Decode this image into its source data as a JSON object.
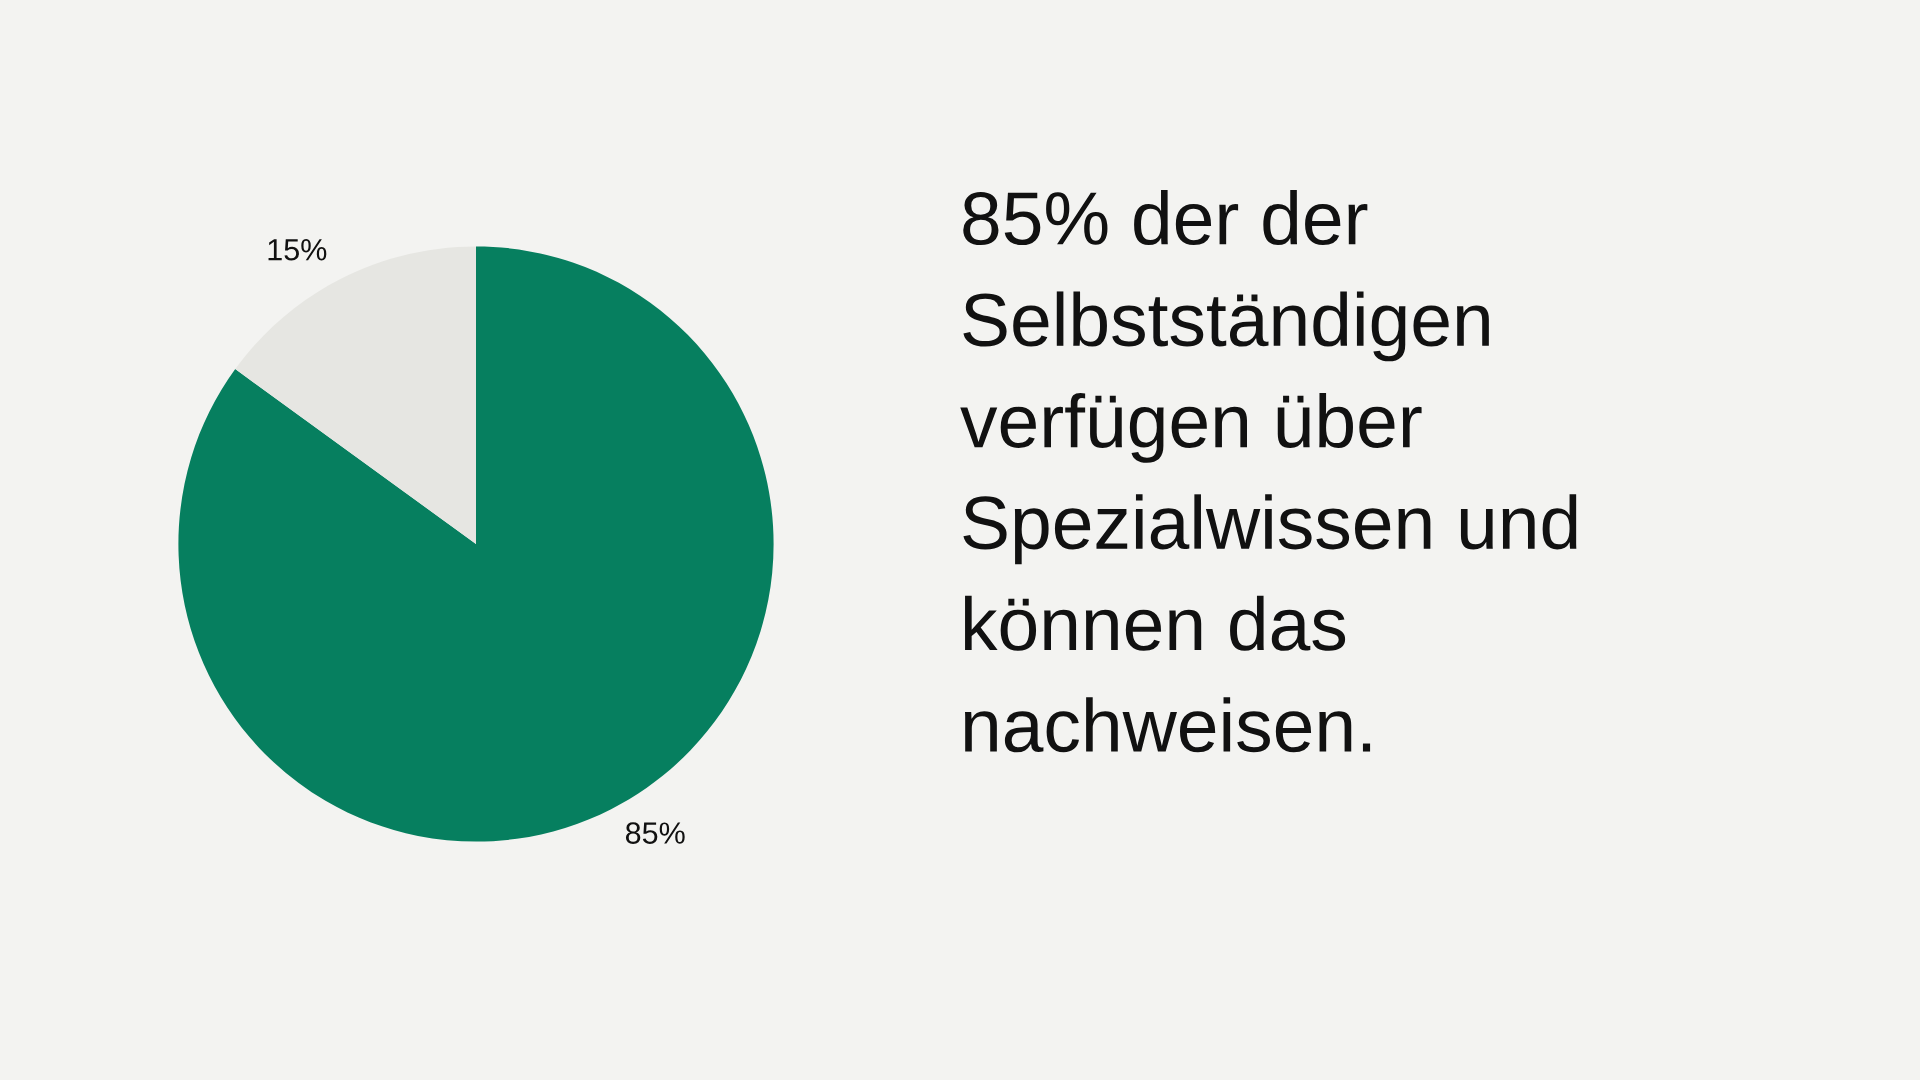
{
  "chart_data": {
    "type": "pie",
    "title": "85% der der\nSelbstständigen\nverfügen über\nSpezialwissen und\nkönnen das\nnachweisen.",
    "categories": [
      null,
      null
    ],
    "values": [
      85,
      15
    ],
    "value_labels": [
      "85%",
      "15%"
    ],
    "colors": [
      "#067f5f",
      "#e6e6e2"
    ]
  }
}
